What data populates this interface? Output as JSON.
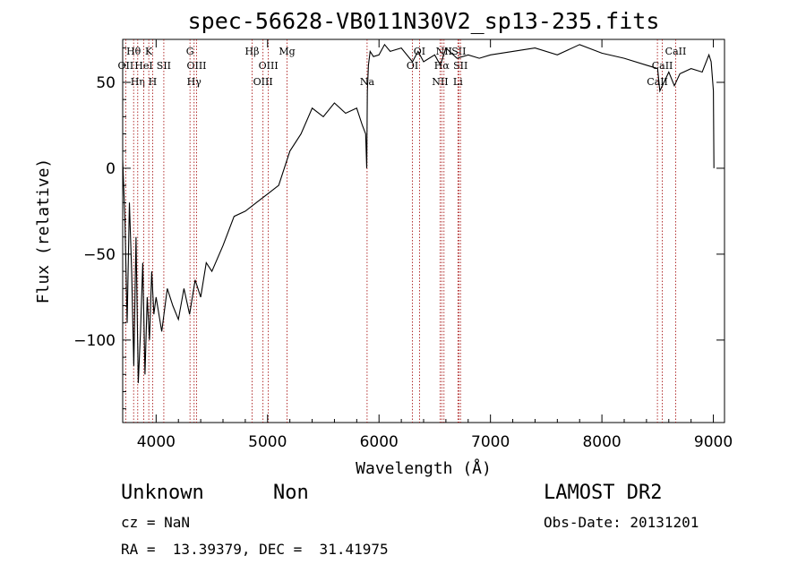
{
  "chart_data": {
    "type": "line",
    "title": "spec-56628-VB011N30V2_sp13-235.fits",
    "xlabel": "Wavelength (Å)",
    "ylabel": "Flux (relative)",
    "xlim": [
      3700,
      9100
    ],
    "ylim": [
      -148,
      75
    ],
    "x_ticks": [
      4000,
      5000,
      6000,
      7000,
      8000,
      9000
    ],
    "y_ticks": [
      -100,
      -50,
      0,
      50
    ],
    "x_tick_labels": [
      "4000",
      "5000",
      "6000",
      "7000",
      "8000",
      "9000"
    ],
    "y_tick_labels": [
      "−100",
      "−50",
      "0",
      "50"
    ],
    "grid": false,
    "series": [
      {
        "line_color": "#000000",
        "x": [
          3700,
          3720,
          3740,
          3760,
          3780,
          3800,
          3820,
          3840,
          3860,
          3880,
          3900,
          3920,
          3940,
          3960,
          3980,
          4000,
          4050,
          4100,
          4150,
          4200,
          4250,
          4300,
          4350,
          4400,
          4450,
          4500,
          4600,
          4700,
          4800,
          4900,
          5000,
          5100,
          5200,
          5300,
          5400,
          5500,
          5600,
          5700,
          5800,
          5850,
          5880,
          5890,
          5895,
          5905,
          5920,
          5950,
          6000,
          6050,
          6100,
          6200,
          6300,
          6350,
          6400,
          6500,
          6550,
          6600,
          6700,
          6800,
          6900,
          7000,
          7200,
          7400,
          7600,
          7800,
          8000,
          8200,
          8400,
          8500,
          8520,
          8600,
          8650,
          8700,
          8800,
          8900,
          8960,
          8980,
          9000,
          9005
        ],
        "y": [
          5,
          -30,
          -90,
          -20,
          -60,
          -115,
          -40,
          -125,
          -95,
          -55,
          -120,
          -75,
          -100,
          -60,
          -85,
          -75,
          -95,
          -70,
          -80,
          -88,
          -70,
          -85,
          -65,
          -75,
          -55,
          -60,
          -45,
          -28,
          -25,
          -20,
          -15,
          -10,
          10,
          20,
          35,
          30,
          38,
          32,
          35,
          25,
          20,
          0,
          45,
          60,
          68,
          65,
          66,
          72,
          68,
          70,
          62,
          68,
          62,
          66,
          60,
          70,
          64,
          66,
          64,
          66,
          68,
          70,
          66,
          72,
          67,
          64,
          60,
          58,
          45,
          56,
          48,
          55,
          58,
          56,
          66,
          62,
          45,
          0
        ]
      }
    ],
    "lines": [
      {
        "name": "Hθ",
        "x": 3798,
        "row": 1
      },
      {
        "name": "OII",
        "x": 3727,
        "row": 2
      },
      {
        "name": "Hη",
        "x": 3835,
        "row": 3
      },
      {
        "name": "K",
        "x": 3934,
        "row": 1
      },
      {
        "name": "HeI",
        "x": 3889,
        "row": 2
      },
      {
        "name": "SII",
        "x": 4069,
        "row": 2
      },
      {
        "name": "H",
        "x": 3969,
        "row": 3
      },
      {
        "name": "G",
        "x": 4304,
        "row": 1
      },
      {
        "name": "OIII",
        "x": 4363,
        "row": 2
      },
      {
        "name": "Hγ",
        "x": 4341,
        "row": 3
      },
      {
        "name": "Hβ",
        "x": 4861,
        "row": 1
      },
      {
        "name": "Mg",
        "x": 5175,
        "row": 1
      },
      {
        "name": "OIII",
        "x": 5007,
        "row": 2
      },
      {
        "name": "OIII",
        "x": 4959,
        "row": 3
      },
      {
        "name": "Na",
        "x": 5893,
        "row": 3
      },
      {
        "name": "OI",
        "x": 6363,
        "row": 1
      },
      {
        "name": "OI",
        "x": 6300,
        "row": 2
      },
      {
        "name": "NII",
        "x": 6583,
        "row": 1
      },
      {
        "name": "SII",
        "x": 6716,
        "row": 1
      },
      {
        "name": "Hα",
        "x": 6563,
        "row": 2
      },
      {
        "name": "SII",
        "x": 6731,
        "row": 2
      },
      {
        "name": "NII",
        "x": 6548,
        "row": 3
      },
      {
        "name": "Li",
        "x": 6708,
        "row": 3
      },
      {
        "name": "CaII",
        "x": 8662,
        "row": 1
      },
      {
        "name": "CaII",
        "x": 8542,
        "row": 2
      },
      {
        "name": "CaII",
        "x": 8498,
        "row": 3
      }
    ]
  },
  "footer": {
    "object_class": "Unknown",
    "subclass": "Non",
    "survey": "LAMOST DR2",
    "cz": "cz = NaN",
    "obs_date": "Obs-Date: 20131201",
    "coords": "RA =  13.39379, DEC =  31.41975"
  },
  "colors": {
    "line_marker": "#a00000",
    "spectrum": "#000000",
    "background": "#ffffff"
  }
}
